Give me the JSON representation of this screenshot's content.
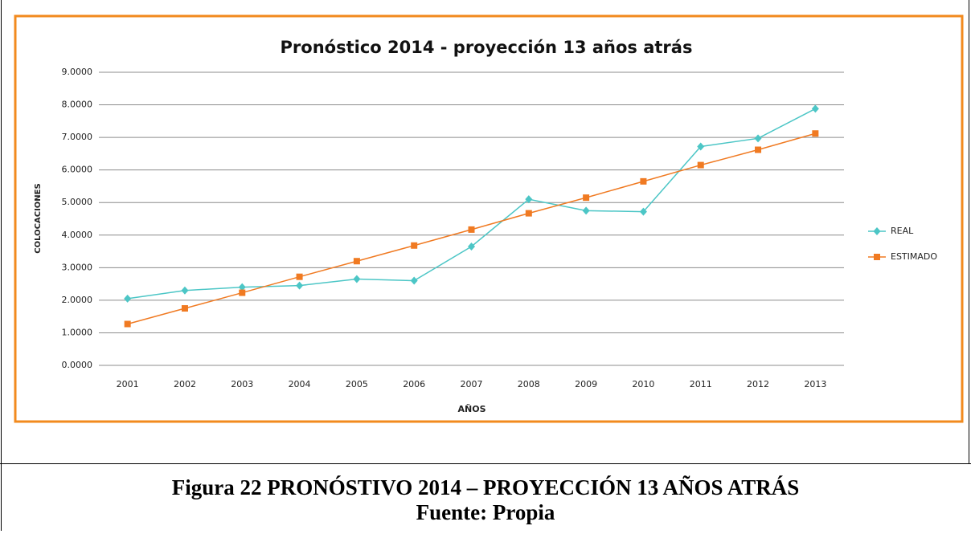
{
  "chart_data": {
    "type": "line",
    "title": "Pronóstico 2014 - proyección 13 años atrás",
    "x_label": "AÑOS",
    "y_label": "COLOCACIONES",
    "categories": [
      "2001",
      "2002",
      "2003",
      "2004",
      "2005",
      "2006",
      "2007",
      "2008",
      "2009",
      "2010",
      "2011",
      "2012",
      "2013"
    ],
    "series": [
      {
        "name": "REAL",
        "color": "#4cc6c6",
        "marker": "diamond",
        "values": [
          2.05,
          2.3,
          2.4,
          2.45,
          2.65,
          2.6,
          3.65,
          5.1,
          4.75,
          4.72,
          6.72,
          6.97,
          7.88
        ]
      },
      {
        "name": "ESTIMADO",
        "color": "#f07a22",
        "marker": "square",
        "values": [
          1.27,
          1.75,
          2.23,
          2.72,
          3.2,
          3.68,
          4.17,
          4.67,
          5.15,
          5.65,
          6.15,
          6.62,
          7.12
        ]
      }
    ],
    "ylim": [
      0,
      9
    ],
    "yticks": [
      {
        "value": 0,
        "label": "0.0000"
      },
      {
        "value": 1,
        "label": "1.0000"
      },
      {
        "value": 2,
        "label": "2.0000"
      },
      {
        "value": 3,
        "label": "3.0000"
      },
      {
        "value": 4,
        "label": "4.0000"
      },
      {
        "value": 5,
        "label": "5.0000"
      },
      {
        "value": 6,
        "label": "6.0000"
      },
      {
        "value": 7,
        "label": "7.0000"
      },
      {
        "value": 8,
        "label": "8.0000"
      },
      {
        "value": 9,
        "label": "9.0000"
      }
    ],
    "grid": true,
    "legend": "right"
  },
  "caption": {
    "figure": "Figura 22 PRONÓSTIVO 2014 – PROYECCIÓN 13 AÑOS ATRÁS",
    "source": "Fuente: Propia"
  }
}
